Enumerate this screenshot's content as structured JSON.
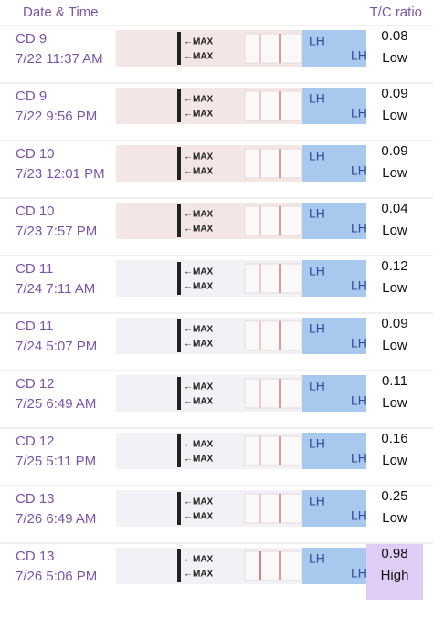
{
  "header": {
    "left": "Date & Time",
    "right": "T/C ratio"
  },
  "strip": {
    "max_label": "MAX",
    "brand": "LH"
  },
  "rows": [
    {
      "day": "CD 9",
      "time": "7/22 11:37 AM",
      "ratio": "0.08",
      "level": "Low"
    },
    {
      "day": "CD 9",
      "time": "7/22 9:56 PM",
      "ratio": "0.09",
      "level": "Low"
    },
    {
      "day": "CD 10",
      "time": "7/23 12:01 PM",
      "ratio": "0.09",
      "level": "Low"
    },
    {
      "day": "CD 10",
      "time": "7/23 7:57 PM",
      "ratio": "0.04",
      "level": "Low"
    },
    {
      "day": "CD 11",
      "time": "7/24 7:11 AM",
      "ratio": "0.12",
      "level": "Low"
    },
    {
      "day": "CD 11",
      "time": "7/24 5:07 PM",
      "ratio": "0.09",
      "level": "Low"
    },
    {
      "day": "CD 12",
      "time": "7/25 6:49 AM",
      "ratio": "0.11",
      "level": "Low"
    },
    {
      "day": "CD 12",
      "time": "7/25 5:11 PM",
      "ratio": "0.16",
      "level": "Low"
    },
    {
      "day": "CD 13",
      "time": "7/26 6:49 AM",
      "ratio": "0.25",
      "level": "Low"
    },
    {
      "day": "CD 13",
      "time": "7/26 5:06 PM",
      "ratio": "0.98",
      "level": "High"
    }
  ]
}
